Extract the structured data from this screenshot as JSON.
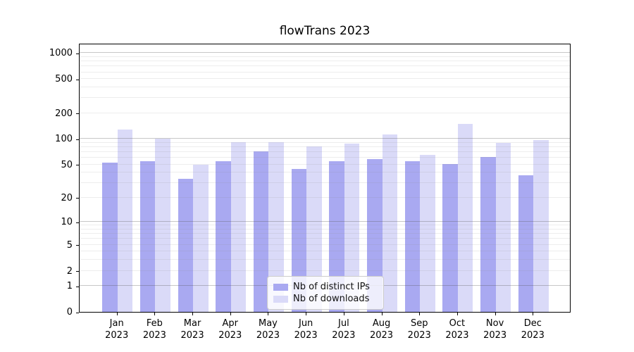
{
  "title": "flowTrans 2023",
  "chart_data": {
    "type": "bar",
    "title": "flowTrans 2023",
    "categories": [
      "Jan",
      "Feb",
      "Mar",
      "Apr",
      "May",
      "Jun",
      "Jul",
      "Aug",
      "Sep",
      "Oct",
      "Nov",
      "Dec"
    ],
    "x_year_label": "2023",
    "series": [
      {
        "name": "Nb of distinct IPs",
        "key": "distinct-ips",
        "color": "#a9a9f1",
        "values": [
          53,
          55,
          34,
          55,
          72,
          44,
          55,
          58,
          55,
          51,
          61,
          37
        ]
      },
      {
        "name": "Nb of downloads",
        "key": "downloads",
        "color": "#dadaf8",
        "values": [
          130,
          101,
          50,
          92,
          91,
          82,
          88,
          113,
          65,
          150,
          90,
          97
        ]
      }
    ],
    "y_ticks": [
      0,
      1,
      2,
      5,
      10,
      20,
      50,
      100,
      200,
      500,
      1000
    ],
    "y_major_gridlines": [
      1,
      10,
      100,
      1000
    ],
    "scale": "log1p",
    "y_axis_top_value": 1310,
    "ylim": [
      0,
      1310
    ],
    "grid": true,
    "legend_position": "lower center",
    "xlabel": "",
    "ylabel": ""
  }
}
